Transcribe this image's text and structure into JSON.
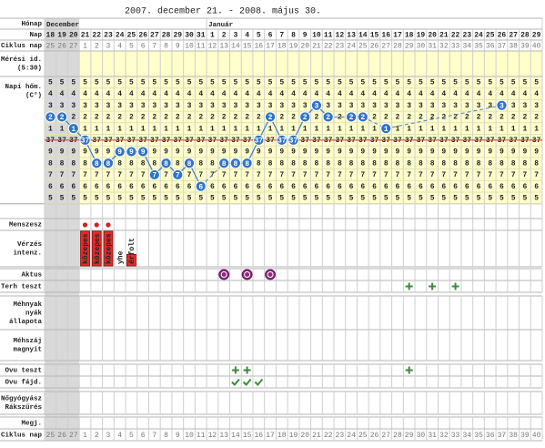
{
  "title": "2007. december 21. - 2008. május 30.",
  "labels": {
    "month": "Hónap",
    "day": "Nap",
    "cycle": "Ciklus nap",
    "measure": [
      "Mérési id.",
      "(5:30)"
    ],
    "temp": [
      "Napi hőm.",
      "(C°)"
    ],
    "menses": "Menszesz",
    "bleeding": [
      "Vérzés",
      "intenz."
    ],
    "intercourse": "Aktus",
    "pregnancy_test": "Terh teszt",
    "cervical_mucus": [
      "Méhnyak",
      "nyák",
      "állapota"
    ],
    "cervix": [
      "Méhszáj",
      "magnyit"
    ],
    "ovulation_test": "Ovu teszt",
    "ovulation_pain": "Ovu fájd.",
    "gyn": [
      "Nőgyógyász",
      "Rákszűrés"
    ],
    "notes": "Megj.",
    "cycle_bottom": "Ciklus nap"
  },
  "months": [
    "December",
    null,
    null,
    null,
    null,
    null,
    null,
    null,
    null,
    null,
    null,
    null,
    null,
    null,
    "Január",
    null,
    null,
    null,
    null,
    null,
    null,
    null,
    null,
    null,
    null,
    null,
    null,
    null,
    null,
    null,
    null,
    null,
    null,
    null,
    null,
    null,
    null,
    null,
    null,
    null,
    null,
    null,
    null
  ],
  "days": [
    18,
    19,
    20,
    21,
    22,
    23,
    24,
    25,
    26,
    27,
    28,
    29,
    30,
    31,
    1,
    2,
    3,
    4,
    5,
    6,
    7,
    8,
    9,
    10,
    11,
    12,
    13,
    14,
    15,
    16,
    17,
    18,
    19,
    20,
    21,
    22,
    23,
    24,
    25,
    26,
    27,
    28,
    29
  ],
  "cycle_days": [
    25,
    26,
    27,
    1,
    2,
    3,
    4,
    5,
    6,
    7,
    8,
    9,
    10,
    11,
    12,
    13,
    14,
    15,
    16,
    17,
    18,
    19,
    20,
    21,
    22,
    23,
    24,
    25,
    26,
    27,
    28,
    29,
    30,
    31,
    32,
    33,
    34,
    35,
    36,
    37,
    38,
    39,
    40
  ],
  "temp_rows": [
    {
      "value": 37.5,
      "label": "5"
    },
    {
      "value": 37.4,
      "label": "4"
    },
    {
      "value": 37.3,
      "label": "3"
    },
    {
      "value": 37.2,
      "label": "2"
    },
    {
      "value": 37.1,
      "label": "1"
    },
    {
      "value": 37.0,
      "label": "37"
    },
    {
      "value": 36.9,
      "label": "9"
    },
    {
      "value": 36.8,
      "label": "8"
    },
    {
      "value": 36.7,
      "label": "7"
    },
    {
      "value": 36.6,
      "label": "6"
    },
    {
      "value": 36.5,
      "label": "5"
    }
  ],
  "reference_line": 37.0,
  "temperatures": [
    37.2,
    37.2,
    37.1,
    37.0,
    36.8,
    36.8,
    36.9,
    36.9,
    36.9,
    36.7,
    36.8,
    36.7,
    36.8,
    36.6,
    null,
    36.8,
    36.8,
    36.8,
    37.0,
    37.2,
    37.0,
    37.0,
    37.2,
    37.3,
    37.2,
    null,
    37.2,
    37.2,
    null,
    37.1,
    null,
    null,
    null,
    null,
    null,
    null,
    null,
    null,
    null,
    37.3,
    null,
    null,
    null
  ],
  "menses": [
    null,
    null,
    null,
    true,
    true,
    true,
    null,
    null,
    null,
    null,
    null,
    null,
    null,
    null,
    null,
    null,
    null,
    null,
    null,
    null,
    null,
    null,
    null,
    null,
    null,
    null,
    null,
    null,
    null,
    null,
    null,
    null,
    null,
    null,
    null,
    null,
    null,
    null,
    null,
    null,
    null,
    null,
    null
  ],
  "bleeding_levels": [
    null,
    null,
    null,
    3,
    3,
    3,
    0,
    1,
    null,
    null,
    null,
    null,
    null,
    null,
    null,
    null,
    null,
    null,
    null,
    null,
    null,
    null,
    null,
    null,
    null,
    null,
    null,
    null,
    null,
    null,
    null,
    null,
    null,
    null,
    null,
    null,
    null,
    null,
    null,
    null,
    null,
    null,
    null
  ],
  "bleeding_labels": [
    null,
    null,
    null,
    "közepes",
    "közepes",
    "közepes",
    "yhe",
    "érfolt",
    null,
    null,
    null,
    null,
    null,
    null,
    null,
    null,
    null,
    null,
    null,
    null,
    null,
    null,
    null,
    null,
    null,
    null,
    null,
    null,
    null,
    null,
    null,
    null,
    null,
    null,
    null,
    null,
    null,
    null,
    null,
    null,
    null,
    null,
    null
  ],
  "intercourse": [
    null,
    null,
    null,
    null,
    null,
    null,
    null,
    null,
    null,
    null,
    null,
    null,
    null,
    null,
    null,
    true,
    null,
    true,
    null,
    true,
    null,
    null,
    null,
    null,
    null,
    null,
    null,
    null,
    null,
    null,
    null,
    null,
    null,
    null,
    null,
    null,
    null,
    null,
    null,
    null,
    null,
    null,
    null
  ],
  "pregnancy_test": [
    null,
    null,
    null,
    null,
    null,
    null,
    null,
    null,
    null,
    null,
    null,
    null,
    null,
    null,
    null,
    null,
    null,
    null,
    null,
    null,
    null,
    null,
    null,
    null,
    null,
    null,
    null,
    null,
    null,
    null,
    null,
    true,
    null,
    true,
    null,
    true,
    null,
    null,
    null,
    null,
    null,
    null,
    null
  ],
  "ovulation_test": [
    null,
    null,
    null,
    null,
    null,
    null,
    null,
    null,
    null,
    null,
    null,
    null,
    null,
    null,
    null,
    null,
    true,
    true,
    null,
    null,
    null,
    null,
    null,
    null,
    null,
    null,
    null,
    null,
    null,
    null,
    null,
    true,
    null,
    null,
    null,
    null,
    null,
    null,
    null,
    null,
    null,
    null,
    null
  ],
  "ovulation_pain": [
    null,
    null,
    null,
    null,
    null,
    null,
    null,
    null,
    null,
    null,
    null,
    null,
    null,
    null,
    null,
    null,
    true,
    true,
    true,
    null,
    null,
    null,
    null,
    null,
    null,
    null,
    null,
    null,
    null,
    null,
    null,
    null,
    null,
    null,
    null,
    null,
    null,
    null,
    null,
    null,
    null,
    null,
    null
  ]
}
